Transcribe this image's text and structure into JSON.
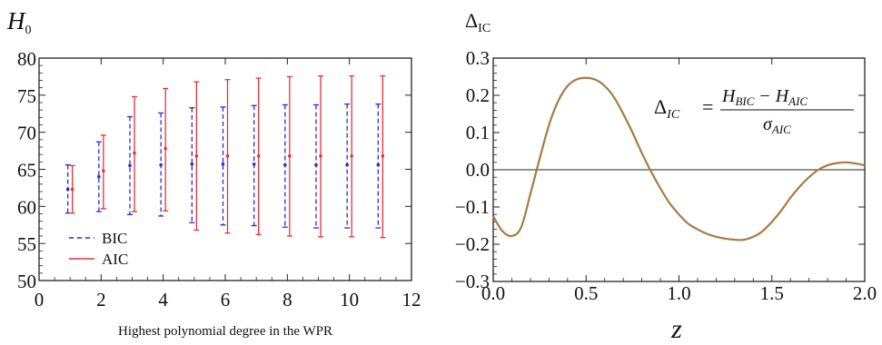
{
  "colors": {
    "bic": "#2b2bd8",
    "aic": "#e8303a",
    "curve": "#a87a44",
    "axis": "#222222"
  },
  "chart_data": [
    {
      "type": "errorbar",
      "ylabel_main": "H",
      "ylabel_sub": "0",
      "xlabel": "Highest polynomial degree in the WPR",
      "xlim": [
        0,
        12
      ],
      "ylim": [
        50,
        80
      ],
      "xticks": [
        "0",
        "2",
        "4",
        "6",
        "8",
        "10",
        "12"
      ],
      "yticks": [
        "50",
        "55",
        "60",
        "65",
        "70",
        "75",
        "80"
      ],
      "legend": {
        "placement": "bottom-left",
        "entries": [
          "BIC",
          "AIC"
        ]
      },
      "series": [
        {
          "name": "BIC",
          "style": "dashed",
          "points": [
            {
              "x": 1,
              "y": 62.3,
              "lo": 59.1,
              "hi": 65.6
            },
            {
              "x": 2,
              "y": 64.0,
              "lo": 59.3,
              "hi": 68.7
            },
            {
              "x": 3,
              "y": 65.5,
              "lo": 58.9,
              "hi": 72.1
            },
            {
              "x": 4,
              "y": 65.6,
              "lo": 58.7,
              "hi": 72.6
            },
            {
              "x": 5,
              "y": 65.7,
              "lo": 57.8,
              "hi": 73.3
            },
            {
              "x": 6,
              "y": 65.7,
              "lo": 57.5,
              "hi": 73.4
            },
            {
              "x": 7,
              "y": 65.7,
              "lo": 57.4,
              "hi": 73.6
            },
            {
              "x": 8,
              "y": 65.6,
              "lo": 57.2,
              "hi": 73.7
            },
            {
              "x": 9,
              "y": 65.6,
              "lo": 57.1,
              "hi": 73.7
            },
            {
              "x": 10,
              "y": 65.6,
              "lo": 57.1,
              "hi": 73.8
            },
            {
              "x": 11,
              "y": 65.6,
              "lo": 57.1,
              "hi": 73.8
            }
          ]
        },
        {
          "name": "AIC",
          "style": "solid",
          "points": [
            {
              "x": 1,
              "y": 62.3,
              "lo": 59.1,
              "hi": 65.5
            },
            {
              "x": 2,
              "y": 64.8,
              "lo": 59.7,
              "hi": 69.6
            },
            {
              "x": 3,
              "y": 67.2,
              "lo": 59.3,
              "hi": 74.8
            },
            {
              "x": 4,
              "y": 67.8,
              "lo": 59.4,
              "hi": 75.9
            },
            {
              "x": 5,
              "y": 66.8,
              "lo": 56.8,
              "hi": 76.8
            },
            {
              "x": 6,
              "y": 66.8,
              "lo": 56.4,
              "hi": 77.1
            },
            {
              "x": 7,
              "y": 66.8,
              "lo": 56.2,
              "hi": 77.3
            },
            {
              "x": 8,
              "y": 66.8,
              "lo": 56.0,
              "hi": 77.5
            },
            {
              "x": 9,
              "y": 66.8,
              "lo": 55.9,
              "hi": 77.6
            },
            {
              "x": 10,
              "y": 66.8,
              "lo": 55.9,
              "hi": 77.6
            },
            {
              "x": 11,
              "y": 66.8,
              "lo": 55.8,
              "hi": 77.6
            }
          ]
        }
      ]
    },
    {
      "type": "line",
      "ylabel_main": "Δ",
      "ylabel_sub": "IC",
      "xlabel": "z",
      "xlim": [
        0,
        2
      ],
      "ylim": [
        -0.3,
        0.3
      ],
      "xticks": [
        "0.0",
        "0.5",
        "1.0",
        "1.5",
        "2.0"
      ],
      "yticks": [
        "−0.3",
        "−0.2",
        "−0.1",
        "0.0",
        "0.1",
        "0.2",
        "0.3"
      ],
      "reference_line": 0,
      "annotation": {
        "lhs": "Δ",
        "lhs_sub": "IC",
        "equals": "=",
        "num_a": "H",
        "num_a_sub": "BIC",
        "minus": "−",
        "num_b": "H",
        "num_b_sub": "AIC",
        "den": "σ",
        "den_sub": "AIC"
      },
      "series": [
        {
          "points": [
            [
              0.0,
              -0.125
            ],
            [
              0.05,
              -0.165
            ],
            [
              0.1,
              -0.178
            ],
            [
              0.15,
              -0.155
            ],
            [
              0.2,
              -0.065
            ],
            [
              0.25,
              0.03
            ],
            [
              0.3,
              0.12
            ],
            [
              0.35,
              0.185
            ],
            [
              0.4,
              0.225
            ],
            [
              0.45,
              0.243
            ],
            [
              0.5,
              0.247
            ],
            [
              0.55,
              0.242
            ],
            [
              0.6,
              0.225
            ],
            [
              0.65,
              0.195
            ],
            [
              0.7,
              0.15
            ],
            [
              0.75,
              0.1
            ],
            [
              0.8,
              0.045
            ],
            [
              0.85,
              -0.005
            ],
            [
              0.9,
              -0.05
            ],
            [
              0.95,
              -0.09
            ],
            [
              1.0,
              -0.12
            ],
            [
              1.05,
              -0.145
            ],
            [
              1.1,
              -0.16
            ],
            [
              1.15,
              -0.172
            ],
            [
              1.2,
              -0.18
            ],
            [
              1.25,
              -0.185
            ],
            [
              1.3,
              -0.188
            ],
            [
              1.35,
              -0.188
            ],
            [
              1.4,
              -0.18
            ],
            [
              1.45,
              -0.165
            ],
            [
              1.5,
              -0.14
            ],
            [
              1.55,
              -0.11
            ],
            [
              1.6,
              -0.075
            ],
            [
              1.65,
              -0.045
            ],
            [
              1.7,
              -0.02
            ],
            [
              1.75,
              0.0
            ],
            [
              1.8,
              0.012
            ],
            [
              1.85,
              0.018
            ],
            [
              1.9,
              0.02
            ],
            [
              1.95,
              0.017
            ],
            [
              2.0,
              0.012
            ]
          ]
        }
      ]
    }
  ]
}
